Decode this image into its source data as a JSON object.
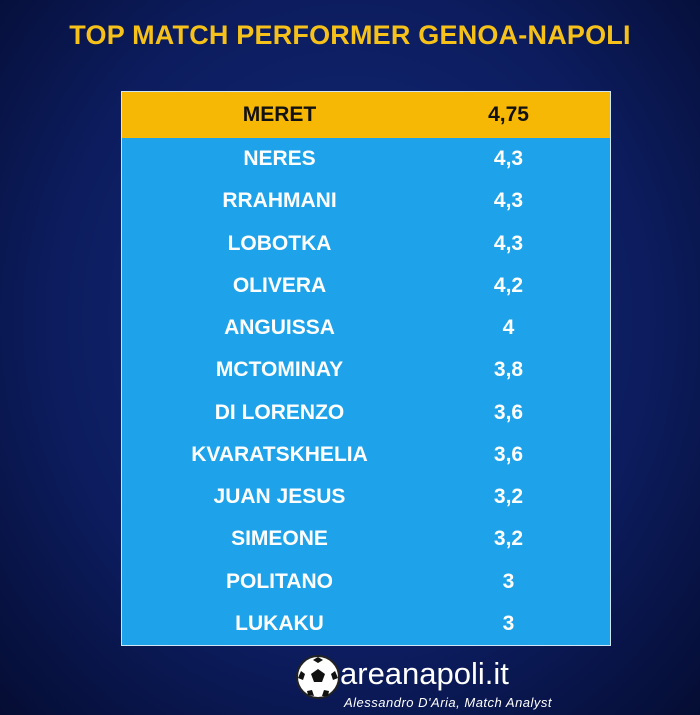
{
  "header": {
    "title": "TOP MATCH PERFORMER GENOA-NAPOLI"
  },
  "table": {
    "rows": [
      [
        "MERET",
        "4,75"
      ],
      [
        "NERES",
        "4,3"
      ],
      [
        "RRAHMANI",
        "4,3"
      ],
      [
        "LOBOTKA",
        "4,3"
      ],
      [
        "OLIVERA",
        "4,2"
      ],
      [
        "ANGUISSA",
        "4"
      ],
      [
        "MCTOMINAY",
        "3,8"
      ],
      [
        "DI LORENZO",
        "3,6"
      ],
      [
        "KVARATSKHELIA",
        "3,6"
      ],
      [
        "JUAN JESUS",
        "3,2"
      ],
      [
        "SIMEONE",
        "3,2"
      ],
      [
        "POLITANO",
        "3"
      ],
      [
        "LUKAKU",
        "3"
      ]
    ]
  },
  "footer": {
    "brand": "areanapoli.it",
    "credit": "Alessandro D'Aria, Match Analyst"
  }
}
